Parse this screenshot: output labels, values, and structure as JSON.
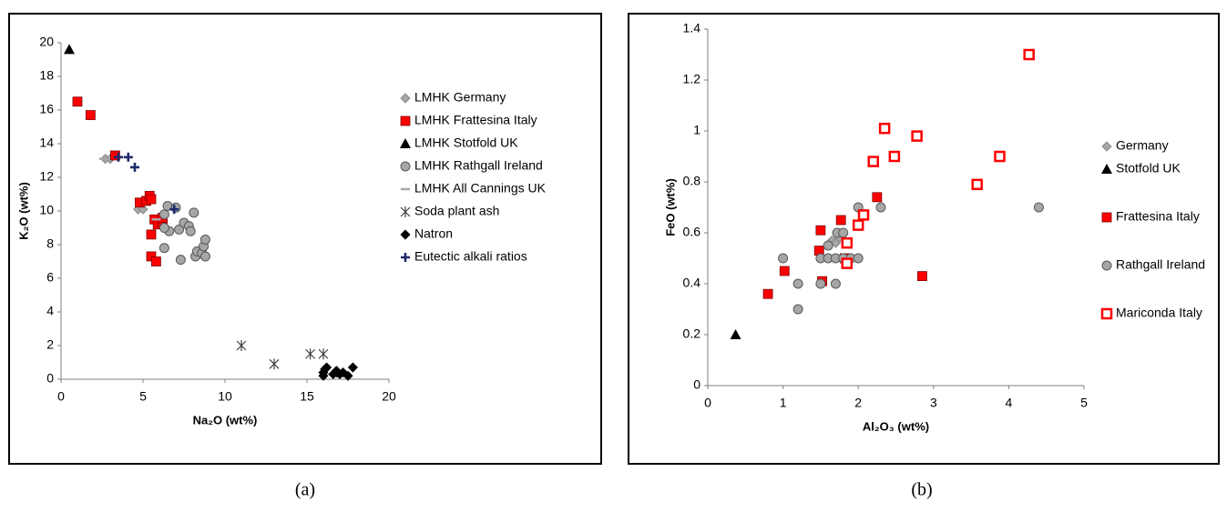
{
  "chart_data": [
    {
      "type": "scatter",
      "panel_label": "(a)",
      "x_label": "Na₂O (wt%)",
      "y_label": "K₂O (wt%)",
      "xlim": [
        0,
        20
      ],
      "xticks": [
        0,
        5,
        10,
        15,
        20
      ],
      "ylim": [
        0,
        20
      ],
      "yticks": [
        0,
        2,
        4,
        6,
        8,
        10,
        12,
        14,
        16,
        18,
        20
      ],
      "series": [
        {
          "name": "LMHK Germany",
          "color": "#a6a6a6",
          "marker": "diamond",
          "x": [
            2.7,
            3.0,
            4.7,
            5.0
          ],
          "values": [
            13.1,
            13.1,
            10.1,
            10.1
          ]
        },
        {
          "name": "LMHK Frattesina Italy",
          "color": "#ff0000",
          "marker": "square",
          "x": [
            1.0,
            1.8,
            3.3,
            4.8,
            5.2,
            5.4,
            5.5,
            5.7,
            5.9,
            6.2,
            5.5,
            5.5,
            5.8,
            6.2
          ],
          "values": [
            16.5,
            15.7,
            13.3,
            10.5,
            10.6,
            10.9,
            10.7,
            9.5,
            9.2,
            9.3,
            8.6,
            7.3,
            7.0,
            9.6
          ]
        },
        {
          "name": "LMHK Stotfold UK",
          "color": "#000000",
          "marker": "triangle",
          "x": [
            0.5
          ],
          "values": [
            19.6
          ]
        },
        {
          "name": "LMHK Rathgall Ireland",
          "color": "#a6a6a6",
          "marker": "circle",
          "x": [
            6.3,
            6.5,
            6.6,
            7.0,
            7.2,
            7.5,
            7.8,
            7.9,
            8.1,
            8.2,
            8.3,
            8.6,
            8.7,
            8.8,
            8.8,
            6.3,
            7.3,
            6.3
          ],
          "values": [
            9.8,
            10.3,
            8.8,
            10.2,
            8.9,
            9.3,
            9.1,
            8.8,
            9.9,
            7.3,
            7.6,
            7.5,
            7.9,
            8.3,
            7.3,
            7.8,
            7.1,
            9.0
          ]
        },
        {
          "name": "LMHK All Cannings UK",
          "color": "#a6a6a6",
          "marker": "dash",
          "x": [
            2.6,
            5.8
          ],
          "values": [
            13.1,
            9.5
          ]
        },
        {
          "name": "Soda plant ash",
          "color": "#404040",
          "marker": "asterisk",
          "x": [
            11,
            13,
            15.2,
            16
          ],
          "values": [
            2.0,
            0.9,
            1.5,
            1.5
          ]
        },
        {
          "name": "Natron",
          "color": "#000000",
          "marker": "diamond",
          "x": [
            16.0,
            16.0,
            16.1,
            16.2,
            16.6,
            16.8,
            17.0,
            17.2,
            17.5,
            17.8,
            16.8
          ],
          "values": [
            0.2,
            0.4,
            0.6,
            0.7,
            0.3,
            0.4,
            0.3,
            0.4,
            0.2,
            0.7,
            0.5
          ]
        },
        {
          "name": "Eutectic alkali ratios",
          "color": "#1f2a6b",
          "marker": "plus",
          "x": [
            3.5,
            4.1,
            4.5,
            6.9
          ],
          "values": [
            13.2,
            13.2,
            12.6,
            10.1
          ]
        }
      ]
    },
    {
      "type": "scatter",
      "panel_label": "(b)",
      "x_label": "Al₂O₃ (wt%)",
      "y_label": "FeO (wt%)",
      "xlim": [
        0,
        5
      ],
      "xticks": [
        0,
        1,
        2,
        3,
        4,
        5
      ],
      "ylim": [
        0,
        1.4
      ],
      "yticks": [
        0,
        0.2,
        0.4,
        0.6,
        0.8,
        1,
        1.2,
        1.4
      ],
      "series": [
        {
          "name": "Germany",
          "color": "#a6a6a6",
          "marker": "diamond",
          "x": [
            1.65,
            1.75,
            1.7
          ],
          "values": [
            0.57,
            0.58,
            0.56
          ]
        },
        {
          "name": "Stotfold UK",
          "color": "#000000",
          "marker": "triangle",
          "x": [
            0.37
          ],
          "values": [
            0.2
          ]
        },
        {
          "name": "Frattesina Italy",
          "color": "#ff0000",
          "marker": "square",
          "x": [
            0.8,
            1.02,
            1.48,
            1.5,
            1.52,
            1.77,
            1.82,
            1.85,
            2.25,
            2.85
          ],
          "values": [
            0.36,
            0.45,
            0.53,
            0.61,
            0.41,
            0.65,
            0.5,
            0.49,
            0.74,
            0.43
          ]
        },
        {
          "name": "Rathgall Ireland",
          "color": "#a6a6a6",
          "marker": "circle",
          "x": [
            1.0,
            1.2,
            1.2,
            1.5,
            1.5,
            1.6,
            1.7,
            1.7,
            1.72,
            1.8,
            1.8,
            1.9,
            2.0,
            2.0,
            2.3,
            4.4,
            1.6
          ],
          "values": [
            0.5,
            0.4,
            0.3,
            0.4,
            0.5,
            0.5,
            0.5,
            0.4,
            0.6,
            0.6,
            0.5,
            0.5,
            0.7,
            0.5,
            0.7,
            0.7,
            0.55
          ]
        },
        {
          "name": "Mariconda Italy",
          "color": "#ff0000",
          "marker": "square-open",
          "x": [
            1.85,
            1.85,
            2.0,
            2.07,
            2.2,
            2.35,
            2.48,
            2.78,
            3.58,
            3.88,
            4.27
          ],
          "values": [
            0.48,
            0.56,
            0.63,
            0.67,
            0.88,
            1.01,
            0.9,
            0.98,
            0.79,
            0.9,
            1.3
          ]
        }
      ]
    }
  ]
}
